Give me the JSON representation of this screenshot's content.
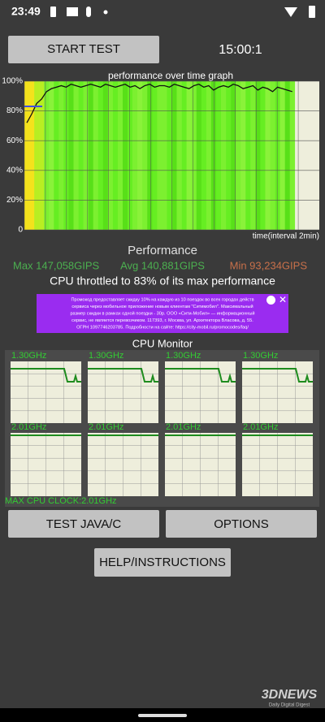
{
  "status_bar": {
    "time": "23:49"
  },
  "buttons": {
    "start": "START TEST",
    "java": "TEST JAVA/C",
    "options": "OPTIONS",
    "help": "HELP/INSTRUCTIONS"
  },
  "timer": "15:00:1",
  "chart_data": {
    "type": "line",
    "title": "performance over time graph",
    "x_label": "time(interval 2min)",
    "xlim": [
      0,
      60
    ],
    "ylim": [
      0,
      100
    ],
    "yticks": [
      0,
      {
        "value": 20,
        "label": "20%"
      },
      {
        "value": 40,
        "label": "40%"
      },
      {
        "value": 60,
        "label": "60%"
      },
      {
        "value": 80,
        "label": "80%"
      },
      {
        "value": 100,
        "label": "100%"
      }
    ],
    "color": "#111111",
    "values": [
      72,
      78,
      85,
      88,
      93,
      95,
      96,
      97,
      96,
      98,
      97,
      96,
      97,
      98,
      97,
      96,
      98,
      97,
      96,
      97,
      98,
      96,
      97,
      95,
      97,
      98,
      96,
      97,
      97,
      96,
      98,
      97,
      96,
      95,
      97,
      98,
      96,
      97,
      94,
      96,
      97,
      96,
      98,
      97,
      95,
      96,
      97,
      94,
      96,
      95,
      93,
      96,
      95,
      94,
      93
    ]
  },
  "stats": {
    "heading": "Performance",
    "max": "Max 147,058GIPS",
    "avg": "Avg 140,881GIPS",
    "min": "Min 93,234GIPS",
    "throttle": "CPU throttled to 83% of its max performance"
  },
  "ad": {
    "lines": [
      "Промокод предоставляет скидку 10% на каждую из 10 поездок во всех городах действ",
      "сервиса через мобильное приложение новым клиентам \"Ситимобил\". Максимальный",
      "размер скидки в рамках одной поездки - 30р. ООО «Сити-Мобил» — информационный",
      "сервис, не является перевозчиком. 117393, г. Москва, ул. Архитектора Власова, д. 55.",
      "ОГРН 1097746203785. Подробности на сайте: https://city-mobil.ru/promocodes/faq/"
    ]
  },
  "cpu_monitor": {
    "title": "CPU Monitor",
    "cores": [
      "1.30GHz",
      "1.30GHz",
      "1.30GHz",
      "1.30GHz",
      "2.01GHz",
      "2.01GHz",
      "2.01GHz",
      "2.01GHz"
    ],
    "max_clock": "MAX CPU CLOCK:2.01GHz"
  },
  "watermark": {
    "logo": "3DNEWS",
    "tagline": "Daily Digital Digest"
  }
}
